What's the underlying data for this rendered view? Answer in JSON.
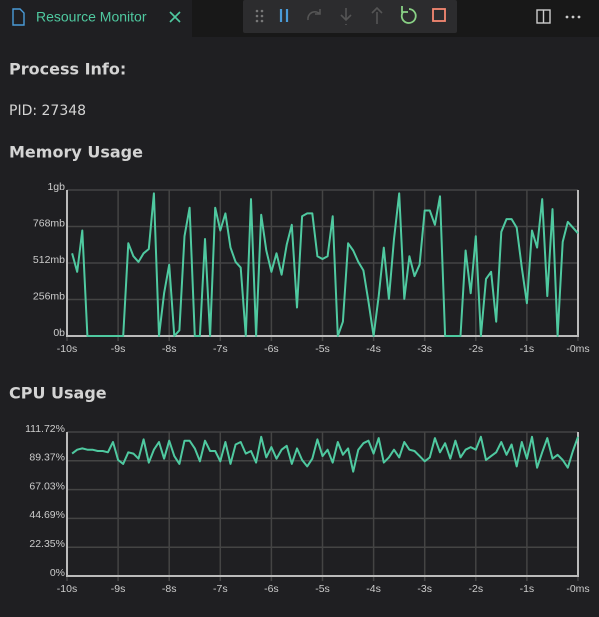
{
  "tab": {
    "title": "Resource Monitor"
  },
  "process_info": {
    "heading": "Process Info:",
    "pid": "PID: 27348"
  },
  "chart_data": [
    {
      "type": "line",
      "title": "Memory Usage",
      "color": "#4fc9a0",
      "grid": true,
      "x": [
        -9.9,
        -9.8,
        -9.7,
        -9.6,
        -9.5,
        -9.4,
        -9.3,
        -9.2,
        -9.1,
        -9.0,
        -8.9,
        -8.8,
        -8.7,
        -8.6,
        -8.5,
        -8.4,
        -8.3,
        -8.2,
        -8.1,
        -8.0,
        -7.9,
        -7.8,
        -7.7,
        -7.6,
        -7.5,
        -7.4,
        -7.3,
        -7.2,
        -7.1,
        -7.0,
        -6.9,
        -6.8,
        -6.7,
        -6.6,
        -6.5,
        -6.4,
        -6.3,
        -6.2,
        -6.1,
        -6.0,
        -5.9,
        -5.8,
        -5.7,
        -5.6,
        -5.5,
        -5.4,
        -5.3,
        -5.2,
        -5.1,
        -5.0,
        -4.9,
        -4.8,
        -4.7,
        -4.6,
        -4.5,
        -4.4,
        -4.3,
        -4.2,
        -4.1,
        -4.0,
        -3.9,
        -3.8,
        -3.7,
        -3.6,
        -3.5,
        -3.4,
        -3.3,
        -3.2,
        -3.1,
        -3.0,
        -2.9,
        -2.8,
        -2.7,
        -2.6,
        -2.5,
        -2.4,
        -2.3,
        -2.2,
        -2.1,
        -2.0,
        -1.9,
        -1.8,
        -1.7,
        -1.6,
        -1.5,
        -1.4,
        -1.3,
        -1.2,
        -1.1,
        -1.0,
        -0.9,
        -0.8,
        -0.7,
        -0.6,
        -0.5,
        -0.4,
        -0.3,
        -0.2,
        -0.1,
        0
      ],
      "values": [
        580,
        450,
        740,
        0,
        0,
        0,
        0,
        0,
        0,
        0,
        0,
        650,
        560,
        520,
        580,
        610,
        1000,
        0,
        300,
        500,
        0,
        40,
        700,
        900,
        0,
        0,
        680,
        0,
        900,
        740,
        860,
        620,
        520,
        480,
        0,
        960,
        0,
        850,
        600,
        450,
        580,
        430,
        640,
        780,
        200,
        840,
        860,
        860,
        560,
        540,
        560,
        840,
        0,
        100,
        650,
        600,
        520,
        460,
        240,
        0,
        280,
        620,
        260,
        680,
        1000,
        260,
        560,
        420,
        500,
        880,
        880,
        780,
        980,
        0,
        0,
        0,
        0,
        600,
        300,
        700,
        0,
        400,
        450,
        100,
        730,
        820,
        820,
        760,
        480,
        230,
        740,
        620,
        960,
        280,
        890,
        0,
        660,
        800,
        760,
        720
      ],
      "xlim": [
        -10,
        0
      ],
      "xticks": [
        {
          "value": -10,
          "label": "-10s"
        },
        {
          "value": -9,
          "label": "-9s"
        },
        {
          "value": -8,
          "label": "-8s"
        },
        {
          "value": -7,
          "label": "-7s"
        },
        {
          "value": -6,
          "label": "-6s"
        },
        {
          "value": -5,
          "label": "-5s"
        },
        {
          "value": -4,
          "label": "-4s"
        },
        {
          "value": -3,
          "label": "-3s"
        },
        {
          "value": -2,
          "label": "-2s"
        },
        {
          "value": -1,
          "label": "-1s"
        },
        {
          "value": 0,
          "label": "-0ms"
        }
      ],
      "ylim": [
        0,
        1024
      ],
      "yticks": [
        {
          "value": 0,
          "label": "0b"
        },
        {
          "value": 256,
          "label": "256mb"
        },
        {
          "value": 512,
          "label": "512mb"
        },
        {
          "value": 768,
          "label": "768mb"
        },
        {
          "value": 1024,
          "label": "1gb"
        }
      ]
    },
    {
      "type": "line",
      "title": "CPU Usage",
      "color": "#4fc9a0",
      "grid": true,
      "x": [
        -9.9,
        -9.8,
        -9.7,
        -9.6,
        -9.5,
        -9.4,
        -9.3,
        -9.2,
        -9.1,
        -9.0,
        -8.9,
        -8.8,
        -8.7,
        -8.6,
        -8.5,
        -8.4,
        -8.3,
        -8.2,
        -8.1,
        -8.0,
        -7.9,
        -7.8,
        -7.7,
        -7.6,
        -7.5,
        -7.4,
        -7.3,
        -7.2,
        -7.1,
        -7.0,
        -6.9,
        -6.8,
        -6.7,
        -6.6,
        -6.5,
        -6.4,
        -6.3,
        -6.2,
        -6.1,
        -6.0,
        -5.9,
        -5.8,
        -5.7,
        -5.6,
        -5.5,
        -5.4,
        -5.3,
        -5.2,
        -5.1,
        -5.0,
        -4.9,
        -4.8,
        -4.7,
        -4.6,
        -4.5,
        -4.4,
        -4.3,
        -4.2,
        -4.1,
        -4.0,
        -3.9,
        -3.8,
        -3.7,
        -3.6,
        -3.5,
        -3.4,
        -3.3,
        -3.2,
        -3.1,
        -3.0,
        -2.9,
        -2.8,
        -2.7,
        -2.6,
        -2.5,
        -2.4,
        -2.3,
        -2.2,
        -2.1,
        -2.0,
        -1.9,
        -1.8,
        -1.7,
        -1.6,
        -1.5,
        -1.4,
        -1.3,
        -1.2,
        -1.1,
        -1.0,
        -0.9,
        -0.8,
        -0.7,
        -0.6,
        -0.5,
        -0.4,
        -0.3,
        -0.2,
        -0.1,
        0
      ],
      "values": [
        95,
        98,
        99,
        98,
        98,
        97,
        97,
        96,
        104,
        90,
        87,
        96,
        95,
        91,
        106,
        88,
        98,
        104,
        91,
        105,
        93,
        87,
        105,
        105,
        99,
        89,
        105,
        97,
        97,
        89,
        104,
        87,
        102,
        104,
        95,
        97,
        88,
        108,
        92,
        100,
        91,
        98,
        101,
        87,
        99,
        90,
        85,
        91,
        106,
        93,
        98,
        88,
        104,
        94,
        99,
        81,
        98,
        103,
        105,
        95,
        107,
        88,
        92,
        98,
        92,
        104,
        98,
        97,
        93,
        89,
        92,
        107,
        96,
        103,
        91,
        105,
        92,
        98,
        100,
        98,
        108,
        90,
        93,
        96,
        104,
        94,
        102,
        85,
        104,
        91,
        108,
        84,
        96,
        107,
        91,
        94,
        90,
        84,
        97,
        108
      ],
      "xlim": [
        -10,
        0
      ],
      "xticks": [
        {
          "value": -10,
          "label": "-10s"
        },
        {
          "value": -9,
          "label": "-9s"
        },
        {
          "value": -8,
          "label": "-8s"
        },
        {
          "value": -7,
          "label": "-7s"
        },
        {
          "value": -6,
          "label": "-6s"
        },
        {
          "value": -5,
          "label": "-5s"
        },
        {
          "value": -4,
          "label": "-4s"
        },
        {
          "value": -3,
          "label": "-3s"
        },
        {
          "value": -2,
          "label": "-2s"
        },
        {
          "value": -1,
          "label": "-1s"
        },
        {
          "value": 0,
          "label": "-0ms"
        }
      ],
      "ylim": [
        0,
        111.72
      ],
      "yticks": [
        {
          "value": 0,
          "label": "0%"
        },
        {
          "value": 22.35,
          "label": "22.35%"
        },
        {
          "value": 44.69,
          "label": "44.69%"
        },
        {
          "value": 67.03,
          "label": "67.03%"
        },
        {
          "value": 89.37,
          "label": "89.37%"
        },
        {
          "value": 111.72,
          "label": "111.72%"
        }
      ]
    }
  ]
}
